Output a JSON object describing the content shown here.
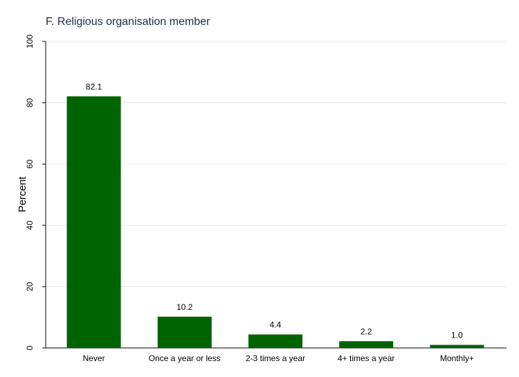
{
  "chart_data": {
    "type": "bar",
    "title": "F. Religious organisation member",
    "xlabel": "",
    "ylabel": "Percent",
    "categories": [
      "Never",
      "Once a year or less",
      "2-3 times a year",
      "4+ times a year",
      "Monthly+"
    ],
    "values": [
      82.1,
      10.2,
      4.4,
      2.2,
      1.0
    ],
    "value_labels": [
      "82.1",
      "10.2",
      "4.4",
      "2.2",
      "1.0"
    ],
    "ylim": [
      0,
      100
    ],
    "yticks": [
      0,
      20,
      40,
      60,
      80,
      100
    ],
    "grid": true,
    "bar_color": "#006400",
    "grid_color": "#e6eaef"
  }
}
